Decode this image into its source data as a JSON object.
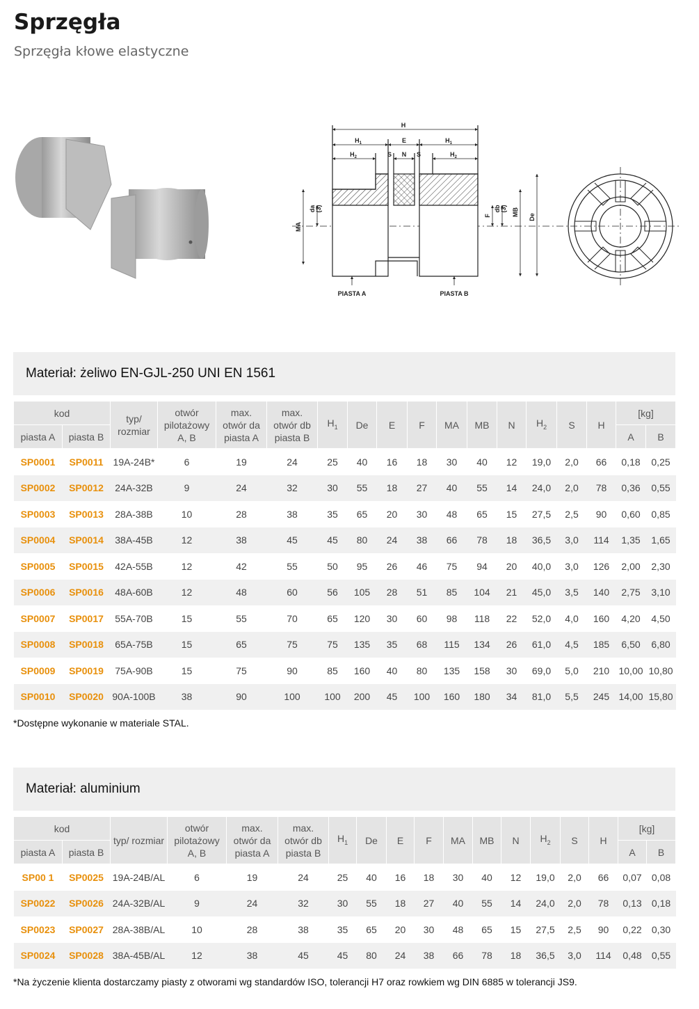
{
  "header": {
    "title": "Sprzęgła",
    "subtitle": "Sprzęgła kłowe elastyczne"
  },
  "diagram": {
    "h": "H",
    "h1": {
      "base": "H",
      "sub": "1"
    },
    "e": "E",
    "h2": {
      "base": "H",
      "sub": "2"
    },
    "s": "S",
    "n": "N",
    "ma": "MA",
    "da": "da",
    "da_note": "(3)",
    "f": "F",
    "db": "db",
    "db_note": "(3)",
    "mb": "MB",
    "de": "De",
    "piasta_a": "PIASTA A",
    "piasta_b": "PIASTA B"
  },
  "tables": [
    {
      "title": "Materiał: żeliwo EN-GJL-250 UNI EN 1561",
      "columns": {
        "kod": "kod",
        "piasta_a": "piasta A",
        "piasta_b": "piasta B",
        "typ": "typ/ rozmiar",
        "otwor": "otwór pilotażowy A, B",
        "da": "max. otwór da piasta A",
        "db": "max. otwór db piasta B",
        "h1": {
          "base": "H",
          "sub": "1"
        },
        "de": "De",
        "e": "E",
        "f": "F",
        "ma": "MA",
        "mb": "MB",
        "n": "N",
        "h2": {
          "base": "H",
          "sub": "2"
        },
        "s": "S",
        "h": "H",
        "kg": "[kg]",
        "a": "A",
        "b": "B"
      },
      "rows": [
        [
          "SP0001",
          "SP0011",
          "19A-24B*",
          "6",
          "19",
          "24",
          "25",
          "40",
          "16",
          "18",
          "30",
          "40",
          "12",
          "19,0",
          "2,0",
          "66",
          "0,18",
          "0,25"
        ],
        [
          "SP0002",
          "SP0012",
          "24A-32B",
          "9",
          "24",
          "32",
          "30",
          "55",
          "18",
          "27",
          "40",
          "55",
          "14",
          "24,0",
          "2,0",
          "78",
          "0,36",
          "0,55"
        ],
        [
          "SP0003",
          "SP0013",
          "28A-38B",
          "10",
          "28",
          "38",
          "35",
          "65",
          "20",
          "30",
          "48",
          "65",
          "15",
          "27,5",
          "2,5",
          "90",
          "0,60",
          "0,85"
        ],
        [
          "SP0004",
          "SP0014",
          "38A-45B",
          "12",
          "38",
          "45",
          "45",
          "80",
          "24",
          "38",
          "66",
          "78",
          "18",
          "36,5",
          "3,0",
          "114",
          "1,35",
          "1,65"
        ],
        [
          "SP0005",
          "SP0015",
          "42A-55B",
          "12",
          "42",
          "55",
          "50",
          "95",
          "26",
          "46",
          "75",
          "94",
          "20",
          "40,0",
          "3,0",
          "126",
          "2,00",
          "2,30"
        ],
        [
          "SP0006",
          "SP0016",
          "48A-60B",
          "12",
          "48",
          "60",
          "56",
          "105",
          "28",
          "51",
          "85",
          "104",
          "21",
          "45,0",
          "3,5",
          "140",
          "2,75",
          "3,10"
        ],
        [
          "SP0007",
          "SP0017",
          "55A-70B",
          "15",
          "55",
          "70",
          "65",
          "120",
          "30",
          "60",
          "98",
          "118",
          "22",
          "52,0",
          "4,0",
          "160",
          "4,20",
          "4,50"
        ],
        [
          "SP0008",
          "SP0018",
          "65A-75B",
          "15",
          "65",
          "75",
          "75",
          "135",
          "35",
          "68",
          "115",
          "134",
          "26",
          "61,0",
          "4,5",
          "185",
          "6,50",
          "6,80"
        ],
        [
          "SP0009",
          "SP0019",
          "75A-90B",
          "15",
          "75",
          "90",
          "85",
          "160",
          "40",
          "80",
          "135",
          "158",
          "30",
          "69,0",
          "5,0",
          "210",
          "10,00",
          "10,80"
        ],
        [
          "SP0010",
          "SP0020",
          "90A-100B",
          "38",
          "90",
          "100",
          "100",
          "200",
          "45",
          "100",
          "160",
          "180",
          "34",
          "81,0",
          "5,5",
          "245",
          "14,00",
          "15,80"
        ]
      ],
      "note": "*Dostępne wykonanie w materiale STAL."
    },
    {
      "title": "Materiał: aluminium",
      "columns": {
        "kod": "kod",
        "piasta_a": "piasta A",
        "piasta_b": "piasta B",
        "typ": "typ/ rozmiar",
        "otwor": "otwór pilotażowy A, B",
        "da": "max. otwór da piasta A",
        "db": "max. otwór db piasta B",
        "h1": {
          "base": "H",
          "sub": "1"
        },
        "de": "De",
        "e": "E",
        "f": "F",
        "ma": "MA",
        "mb": "MB",
        "n": "N",
        "h2": {
          "base": "H",
          "sub": "2"
        },
        "s": "S",
        "h": "H",
        "kg": "[kg]",
        "a": "A",
        "b": "B"
      },
      "rows": [
        [
          "SP00 1",
          "SP0025",
          "19A-24B/AL",
          "6",
          "19",
          "24",
          "25",
          "40",
          "16",
          "18",
          "30",
          "40",
          "12",
          "19,0",
          "2,0",
          "66",
          "0,07",
          "0,08"
        ],
        [
          "SP0022",
          "SP0026",
          "24A-32B/AL",
          "9",
          "24",
          "32",
          "30",
          "55",
          "18",
          "27",
          "40",
          "55",
          "14",
          "24,0",
          "2,0",
          "78",
          "0,13",
          "0,18"
        ],
        [
          "SP0023",
          "SP0027",
          "28A-38B/AL",
          "10",
          "28",
          "38",
          "35",
          "65",
          "20",
          "30",
          "48",
          "65",
          "15",
          "27,5",
          "2,5",
          "90",
          "0,22",
          "0,30"
        ],
        [
          "SP0024",
          "SP0028",
          "38A-45B/AL",
          "12",
          "38",
          "45",
          "45",
          "80",
          "24",
          "38",
          "66",
          "78",
          "18",
          "36,5",
          "3,0",
          "114",
          "0,48",
          "0,55"
        ]
      ],
      "note": "*Na życzenie klienta dostarczamy piasty z otworami wg standardów ISO, tolerancji H7 oraz rowkiem wg DIN 6885 w tolerancji JS9."
    }
  ]
}
